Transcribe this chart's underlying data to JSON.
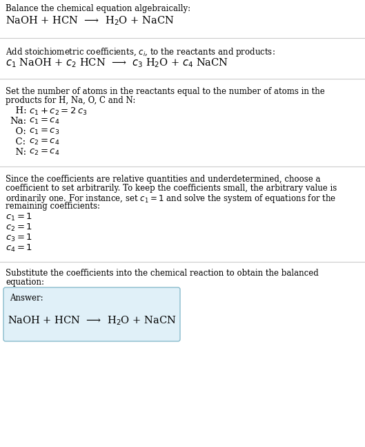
{
  "bg_color": "#ffffff",
  "text_color": "#000000",
  "separator_color": "#cccccc",
  "answer_box_color": "#e0f0f8",
  "answer_box_border": "#88bbcc",
  "section1_title": "Balance the chemical equation algebraically:",
  "section1_eq": "NaOH + HCN  ⟶  H$_2$O + NaCN",
  "section2_title": "Add stoichiometric coefficients, $c_i$, to the reactants and products:",
  "section2_eq": "$c_1$ NaOH + $c_2$ HCN  ⟶  $c_3$ H$_2$O + $c_4$ NaCN",
  "section3_title": "Set the number of atoms in the reactants equal to the number of atoms in the\nproducts for H, Na, O, C and N:",
  "section3_equations": [
    [
      "  H:",
      "$c_1 + c_2 = 2\\,c_3$"
    ],
    [
      "Na:",
      "$c_1 = c_4$"
    ],
    [
      "  O:",
      "$c_1 = c_3$"
    ],
    [
      "  C:",
      "$c_2 = c_4$"
    ],
    [
      "  N:",
      "$c_2 = c_4$"
    ]
  ],
  "section4_title": "Since the coefficients are relative quantities and underdetermined, choose a\ncoefficient to set arbitrarily. To keep the coefficients small, the arbitrary value is\nordinarily one. For instance, set $c_1 = 1$ and solve the system of equations for the\nremaining coefficients:",
  "section4_equations": [
    "$c_1 = 1$",
    "$c_2 = 1$",
    "$c_3 = 1$",
    "$c_4 = 1$"
  ],
  "section5_title": "Substitute the coefficients into the chemical reaction to obtain the balanced\nequation:",
  "answer_label": "Answer:",
  "answer_eq": "NaOH + HCN  ⟶  H$_2$O + NaCN",
  "fig_width": 5.29,
  "fig_height": 6.47,
  "dpi": 100
}
